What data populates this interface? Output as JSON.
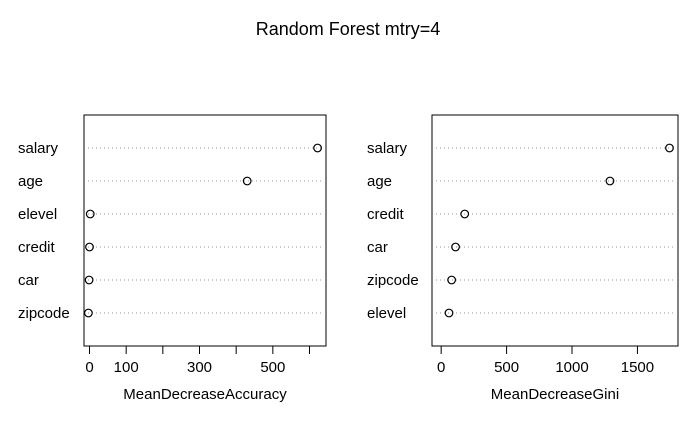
{
  "chart_data": {
    "title": "Random Forest mtry=4",
    "type": "scatter",
    "panels": [
      {
        "xlabel": "MeanDecreaseAccuracy",
        "xlim": [
          -15,
          645
        ],
        "ticks": [
          0,
          100,
          200,
          300,
          400,
          500,
          600
        ],
        "tick_labels": [
          "0",
          "100",
          "",
          "300",
          "",
          "500",
          ""
        ],
        "points": [
          {
            "label": "salary",
            "value": 622
          },
          {
            "label": "age",
            "value": 430
          },
          {
            "label": "elevel",
            "value": 2
          },
          {
            "label": "credit",
            "value": 0
          },
          {
            "label": "car",
            "value": -1
          },
          {
            "label": "zipcode",
            "value": -3
          }
        ]
      },
      {
        "xlabel": "MeanDecreaseGini",
        "xlim": [
          -70,
          1810
        ],
        "ticks": [
          0,
          500,
          1000,
          1500
        ],
        "tick_labels": [
          "0",
          "500",
          "1000",
          "1500"
        ],
        "points": [
          {
            "label": "salary",
            "value": 1745
          },
          {
            "label": "age",
            "value": 1290
          },
          {
            "label": "credit",
            "value": 180
          },
          {
            "label": "car",
            "value": 110
          },
          {
            "label": "zipcode",
            "value": 80
          },
          {
            "label": "elevel",
            "value": 60
          }
        ]
      }
    ]
  }
}
